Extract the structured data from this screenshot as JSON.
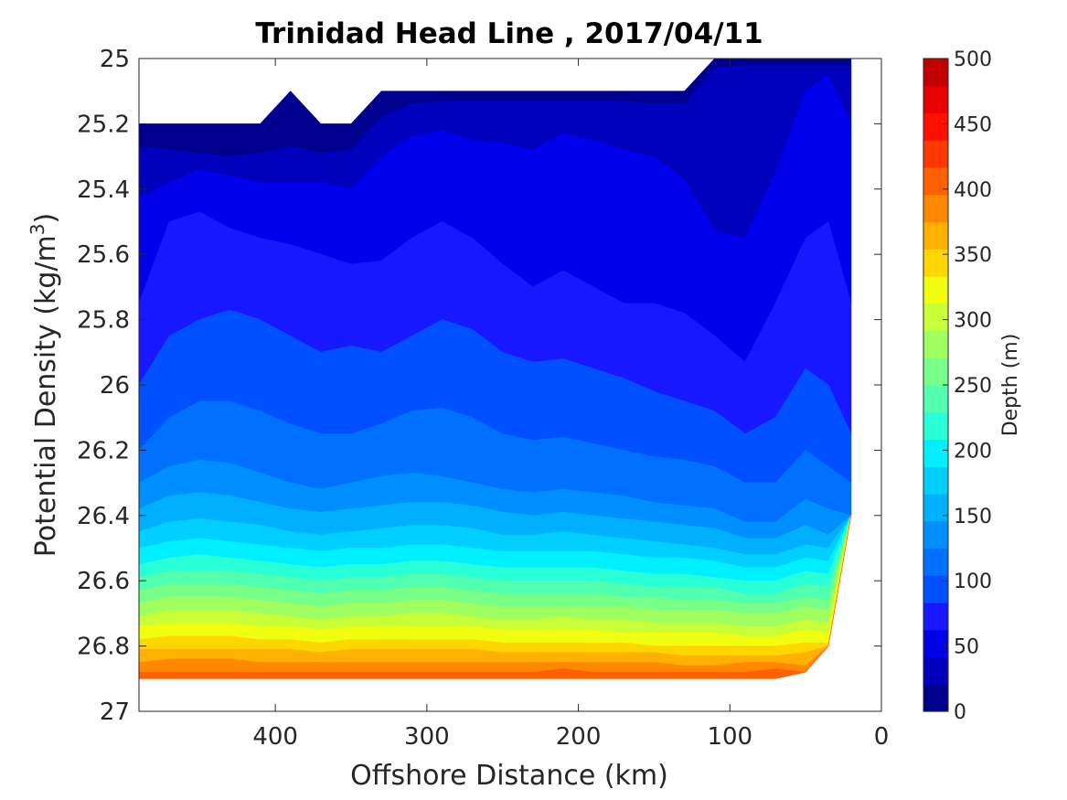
{
  "chart_data": {
    "type": "contour",
    "title": "Trinidad Head Line , 2017/04/11",
    "xlabel": "Offshore Distance (km)",
    "ylabel_main": "Potential Density (kg/m",
    "ylabel_sup": "3",
    "ylabel_close": ")",
    "colorbar_label": "Depth (m)",
    "x_range": [
      490,
      0
    ],
    "y_range": [
      25.0,
      27.0
    ],
    "y_reversed": true,
    "x_ticks": [
      "400",
      "300",
      "200",
      "100",
      "0"
    ],
    "x_tick_values": [
      400,
      300,
      200,
      100,
      0
    ],
    "y_ticks": [
      "25",
      "25.2",
      "25.4",
      "25.6",
      "25.8",
      "26",
      "26.2",
      "26.4",
      "26.6",
      "26.8",
      "27"
    ],
    "y_tick_values": [
      25.0,
      25.2,
      25.4,
      25.6,
      25.8,
      26.0,
      26.2,
      26.4,
      26.6,
      26.8,
      27.0
    ],
    "colorbar_range": [
      0,
      500
    ],
    "colorbar_ticks": [
      "0",
      "50",
      "100",
      "150",
      "200",
      "250",
      "300",
      "350",
      "400",
      "450",
      "500"
    ],
    "colorbar_tick_values": [
      0,
      50,
      100,
      150,
      200,
      250,
      300,
      350,
      400,
      450,
      500
    ],
    "contour_step": 25,
    "colormap": [
      "#00008f",
      "#0000bd",
      "#0000ea",
      "#1818ff",
      "#0050ff",
      "#0070ff",
      "#008fff",
      "#00b0ff",
      "#00cfff",
      "#00f0ff",
      "#28ffd7",
      "#50ffb0",
      "#78ff88",
      "#a0ff60",
      "#c8ff38",
      "#f0ff10",
      "#ffd700",
      "#ffb000",
      "#ff8800",
      "#ff6000",
      "#ff3800",
      "#ff1000",
      "#e80000",
      "#c00000"
    ],
    "colorbar_colors": [
      "#00008f",
      "#0000bd",
      "#0000ea",
      "#1818ff",
      "#0050ff",
      "#0070ff",
      "#008fff",
      "#00b0ff",
      "#00cfff",
      "#00f0ff",
      "#28ffd7",
      "#50ffb0",
      "#78ff88",
      "#a0ff60",
      "#c8ff38",
      "#f0ff10",
      "#ffd700",
      "#ffb000",
      "#ff8800",
      "#ff6000",
      "#ff3800",
      "#ff1000",
      "#e80000",
      "#c00000"
    ],
    "isopycnal_depth_profiles": {
      "distance_km": [
        490,
        470,
        450,
        430,
        410,
        390,
        370,
        350,
        330,
        310,
        290,
        270,
        250,
        230,
        210,
        190,
        170,
        150,
        130,
        110,
        90,
        70,
        50,
        35,
        20
      ],
      "min_density": [
        25.2,
        25.2,
        25.2,
        25.2,
        25.2,
        25.1,
        25.2,
        25.2,
        25.1,
        25.1,
        25.1,
        25.1,
        25.1,
        25.1,
        25.1,
        25.1,
        25.1,
        25.1,
        25.1,
        25.0,
        25.0,
        25.0,
        25.0,
        25.0,
        25.0
      ],
      "max_density": [
        26.9,
        26.9,
        26.9,
        26.9,
        26.9,
        26.9,
        26.9,
        26.9,
        26.9,
        26.9,
        26.9,
        26.9,
        26.9,
        26.9,
        26.9,
        26.9,
        26.9,
        26.9,
        26.9,
        26.9,
        26.9,
        26.9,
        26.88,
        26.8,
        26.4
      ],
      "isopycnals": [
        {
          "depth_m": 25,
          "density": [
            25.27,
            25.28,
            25.29,
            25.3,
            25.29,
            25.27,
            25.29,
            25.28,
            25.18,
            25.14,
            25.13,
            25.13,
            25.13,
            25.13,
            25.13,
            25.13,
            25.13,
            25.14,
            25.14,
            25.03,
            25.02,
            25.02,
            25.02,
            25.02,
            25.02
          ]
        },
        {
          "depth_m": 50,
          "density": [
            25.43,
            25.38,
            25.34,
            25.36,
            25.38,
            25.38,
            25.38,
            25.4,
            25.3,
            25.24,
            25.22,
            25.25,
            25.26,
            25.28,
            25.23,
            25.25,
            25.28,
            25.3,
            25.37,
            25.53,
            25.55,
            25.35,
            25.1,
            25.05,
            25.2
          ]
        },
        {
          "depth_m": 75,
          "density": [
            25.75,
            25.5,
            25.47,
            25.52,
            25.55,
            25.57,
            25.6,
            25.63,
            25.62,
            25.55,
            25.5,
            25.55,
            25.63,
            25.7,
            25.65,
            25.7,
            25.75,
            25.75,
            25.78,
            25.85,
            25.93,
            25.75,
            25.55,
            25.5,
            25.75
          ]
        },
        {
          "depth_m": 100,
          "density": [
            26.0,
            25.85,
            25.8,
            25.77,
            25.8,
            25.85,
            25.9,
            25.88,
            25.9,
            25.85,
            25.8,
            25.83,
            25.9,
            25.93,
            25.92,
            25.95,
            25.98,
            26.02,
            26.05,
            26.08,
            26.15,
            26.1,
            25.95,
            26.0,
            26.15
          ]
        },
        {
          "depth_m": 125,
          "density": [
            26.2,
            26.1,
            26.05,
            26.05,
            26.08,
            26.12,
            26.15,
            26.15,
            26.12,
            26.08,
            26.07,
            26.1,
            26.15,
            26.17,
            26.16,
            26.18,
            26.2,
            26.22,
            26.23,
            26.25,
            26.3,
            26.3,
            26.2,
            26.25,
            26.3
          ]
        },
        {
          "depth_m": 150,
          "density": [
            26.3,
            26.25,
            26.23,
            26.24,
            26.27,
            26.3,
            26.32,
            26.3,
            26.28,
            26.27,
            26.28,
            26.3,
            26.32,
            26.33,
            26.32,
            26.33,
            26.34,
            26.36,
            26.37,
            26.38,
            26.42,
            26.42,
            26.35,
            26.38,
            26.4
          ]
        },
        {
          "depth_m": 175,
          "density": [
            26.38,
            26.34,
            26.33,
            26.34,
            26.36,
            26.38,
            26.39,
            26.38,
            26.37,
            26.36,
            26.36,
            26.37,
            26.39,
            26.4,
            26.39,
            26.4,
            26.41,
            26.42,
            26.43,
            26.44,
            26.47,
            26.47,
            26.43,
            26.46,
            26.4
          ]
        },
        {
          "depth_m": 200,
          "density": [
            26.45,
            26.42,
            26.41,
            26.42,
            26.43,
            26.45,
            26.46,
            26.45,
            26.44,
            26.43,
            26.43,
            26.44,
            26.46,
            26.46,
            26.45,
            26.46,
            26.47,
            26.48,
            26.49,
            26.5,
            26.52,
            26.52,
            26.49,
            26.5,
            26.4
          ]
        },
        {
          "depth_m": 225,
          "density": [
            26.5,
            26.48,
            26.47,
            26.48,
            26.49,
            26.5,
            26.51,
            26.5,
            26.5,
            26.49,
            26.49,
            26.5,
            26.51,
            26.51,
            26.51,
            26.51,
            26.52,
            26.53,
            26.53,
            26.54,
            26.56,
            26.56,
            26.53,
            26.54,
            26.4
          ]
        },
        {
          "depth_m": 250,
          "density": [
            26.55,
            26.53,
            26.52,
            26.53,
            26.54,
            26.55,
            26.56,
            26.55,
            26.55,
            26.54,
            26.54,
            26.55,
            26.56,
            26.56,
            26.56,
            26.56,
            26.57,
            26.58,
            26.58,
            26.59,
            26.6,
            26.6,
            26.57,
            26.58,
            26.4
          ]
        },
        {
          "depth_m": 275,
          "density": [
            26.59,
            26.57,
            26.57,
            26.57,
            26.58,
            26.59,
            26.6,
            26.59,
            26.59,
            26.58,
            26.58,
            26.59,
            26.6,
            26.6,
            26.6,
            26.6,
            26.61,
            26.62,
            26.62,
            26.62,
            26.64,
            26.64,
            26.61,
            26.62,
            26.4
          ]
        },
        {
          "depth_m": 300,
          "density": [
            26.63,
            26.61,
            26.61,
            26.61,
            26.62,
            26.63,
            26.64,
            26.63,
            26.63,
            26.62,
            26.62,
            26.63,
            26.64,
            26.64,
            26.64,
            26.64,
            26.65,
            26.65,
            26.66,
            26.66,
            26.67,
            26.67,
            26.65,
            26.66,
            26.4
          ]
        },
        {
          "depth_m": 325,
          "density": [
            26.67,
            26.65,
            26.65,
            26.65,
            26.66,
            26.67,
            26.68,
            26.67,
            26.67,
            26.66,
            26.66,
            26.67,
            26.68,
            26.68,
            26.68,
            26.68,
            26.68,
            26.69,
            26.69,
            26.69,
            26.7,
            26.7,
            26.68,
            26.69,
            26.4
          ]
        },
        {
          "depth_m": 350,
          "density": [
            26.71,
            26.69,
            26.69,
            26.69,
            26.7,
            26.71,
            26.72,
            26.71,
            26.71,
            26.7,
            26.7,
            26.71,
            26.72,
            26.72,
            26.71,
            26.72,
            26.72,
            26.73,
            26.73,
            26.73,
            26.74,
            26.74,
            26.72,
            26.73,
            26.4
          ]
        },
        {
          "depth_m": 375,
          "density": [
            26.74,
            26.73,
            26.73,
            26.73,
            26.74,
            26.74,
            26.75,
            26.74,
            26.74,
            26.74,
            26.74,
            26.74,
            26.75,
            26.75,
            26.75,
            26.75,
            26.76,
            26.76,
            26.76,
            26.76,
            26.77,
            26.77,
            26.75,
            26.76,
            26.4
          ]
        },
        {
          "depth_m": 400,
          "density": [
            26.78,
            26.77,
            26.77,
            26.77,
            26.78,
            26.78,
            26.79,
            26.78,
            26.78,
            26.78,
            26.78,
            26.78,
            26.79,
            26.79,
            26.79,
            26.79,
            26.79,
            26.8,
            26.8,
            26.8,
            26.8,
            26.8,
            26.79,
            26.79,
            26.4
          ]
        },
        {
          "depth_m": 425,
          "density": [
            26.81,
            26.81,
            26.81,
            26.81,
            26.81,
            26.81,
            26.82,
            26.81,
            26.81,
            26.81,
            26.81,
            26.81,
            26.82,
            26.82,
            26.82,
            26.82,
            26.82,
            26.82,
            26.83,
            26.83,
            26.83,
            26.83,
            26.82,
            26.8,
            26.4
          ]
        },
        {
          "depth_m": 450,
          "density": [
            26.85,
            26.84,
            26.84,
            26.84,
            26.85,
            26.85,
            26.85,
            26.85,
            26.85,
            26.85,
            26.85,
            26.85,
            26.85,
            26.85,
            26.85,
            26.85,
            26.85,
            26.85,
            26.86,
            26.86,
            26.85,
            26.85,
            26.86,
            26.8,
            26.4
          ]
        },
        {
          "depth_m": 475,
          "density": [
            26.88,
            26.88,
            26.88,
            26.88,
            26.88,
            26.88,
            26.88,
            26.88,
            26.88,
            26.88,
            26.88,
            26.88,
            26.88,
            26.88,
            26.87,
            26.88,
            26.88,
            26.88,
            26.88,
            26.88,
            26.88,
            26.87,
            26.88,
            26.8,
            26.4
          ]
        }
      ]
    }
  }
}
